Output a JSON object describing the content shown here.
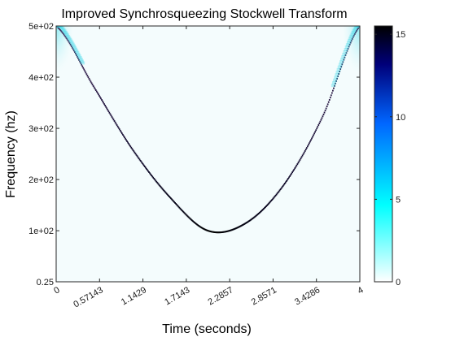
{
  "chart_data": {
    "type": "heatmap",
    "title": "Improved Synchrosqueezing Stockwell Transform",
    "xlabel": "Time (seconds)",
    "ylabel": "Frequency (hz)",
    "xlim": [
      0,
      4
    ],
    "ylim": [
      0.25,
      500
    ],
    "x_ticks": [
      0,
      0.57143,
      1.1429,
      1.7143,
      2.2857,
      2.8571,
      3.4286,
      4
    ],
    "x_tick_labels": [
      "0",
      "0.57143",
      "1.1429",
      "1.7143",
      "2.2857",
      "2.8571",
      "3.4286",
      "4"
    ],
    "y_ticks": [
      0.25,
      100,
      200,
      300,
      400,
      500
    ],
    "y_tick_labels": [
      "0.25",
      "1e+02",
      "2e+02",
      "3e+02",
      "4e+02",
      "5e+02"
    ],
    "colorbar": {
      "range": [
        0,
        15.5
      ],
      "ticks": [
        0,
        5,
        10,
        15
      ],
      "tick_labels": [
        "0",
        "5",
        "10",
        "15"
      ],
      "colormap": [
        "#ffffff",
        "#00ffff",
        "#0066ff",
        "#00007a",
        "#000000"
      ]
    },
    "background_color": "#f4fcfd",
    "ridge": {
      "description_points": [
        {
          "t": 0.0,
          "f": 500
        },
        {
          "t": 0.5,
          "f": 380
        },
        {
          "t": 1.0,
          "f": 260
        },
        {
          "t": 1.5,
          "f": 165
        },
        {
          "t": 2.0,
          "f": 100
        },
        {
          "t": 2.5,
          "f": 115
        },
        {
          "t": 3.0,
          "f": 190
        },
        {
          "t": 3.5,
          "f": 320
        },
        {
          "t": 4.0,
          "f": 500
        }
      ],
      "min_time": 2.07,
      "min_freq": 100,
      "peak_value": 15
    }
  }
}
